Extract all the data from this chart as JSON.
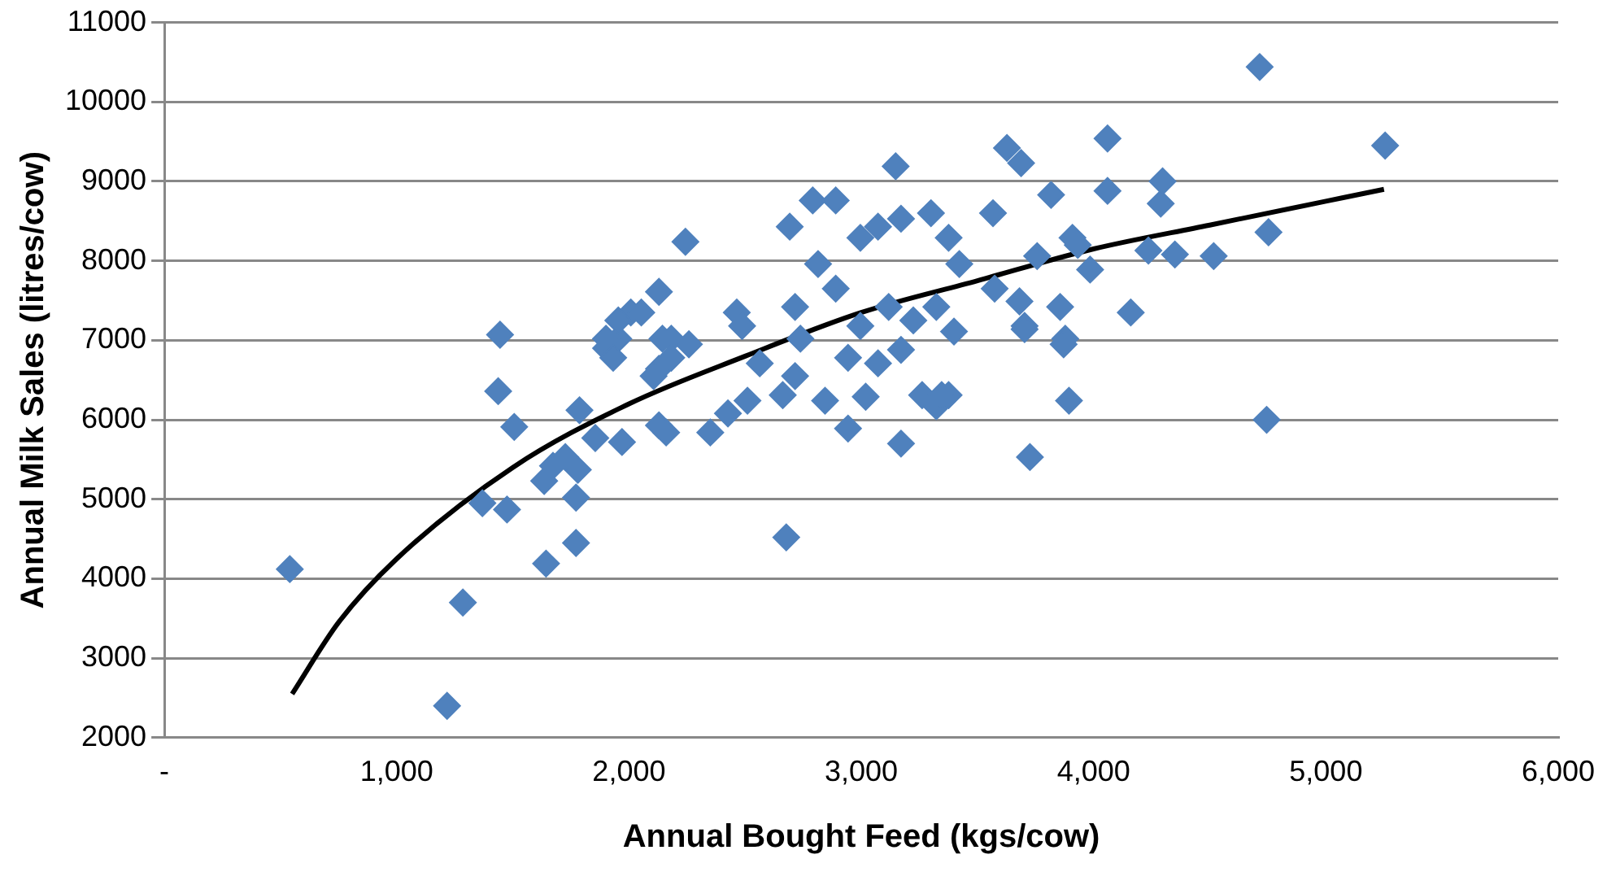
{
  "chart_data": {
    "type": "scatter",
    "xlabel": "Annual Bought Feed (kgs/cow)",
    "ylabel": "Annual Milk Sales (litres/cow)",
    "xlim": [
      0,
      6000
    ],
    "ylim": [
      2000,
      11000
    ],
    "xticks": [
      {
        "value": 0,
        "label": "-"
      },
      {
        "value": 1000,
        "label": "1,000"
      },
      {
        "value": 2000,
        "label": "2,000"
      },
      {
        "value": 3000,
        "label": "3,000"
      },
      {
        "value": 4000,
        "label": "4,000"
      },
      {
        "value": 5000,
        "label": "5,000"
      },
      {
        "value": 6000,
        "label": "6,000"
      }
    ],
    "yticks": [
      2000,
      3000,
      4000,
      5000,
      6000,
      7000,
      8000,
      9000,
      10000,
      11000
    ],
    "grid": "y",
    "legend": false,
    "marker": "diamond",
    "series": [
      {
        "color": "#4f81bd",
        "x": [
          540,
          1217,
          1285,
          1445,
          1437,
          1506,
          1369,
          1475,
          1643,
          1772,
          1772,
          1635,
          1673,
          1780,
          1726,
          1787,
          1855,
          1970,
          1901,
          1954,
          2008,
          1932,
          2129,
          2144,
          2129,
          2129,
          3148,
          3688,
          3627,
          3817,
          3567,
          4060,
          4060,
          2243,
          1954,
          1901,
          2053,
          2182,
          2258,
          2464,
          2487,
          2106,
          2182,
          2160,
          2350,
          2426,
          2510,
          2563,
          2662,
          2715,
          2715,
          2738,
          2677,
          2844,
          2943,
          3019,
          2692,
          2791,
          2890,
          2814,
          2890,
          2996,
          3072,
          3171,
          3300,
          3376,
          3422,
          2996,
          3118,
          3224,
          3323,
          2943,
          3072,
          3171,
          3171,
          3262,
          3323,
          3376,
          3399,
          3574,
          3681,
          3703,
          3757,
          3856,
          3878,
          3909,
          3985,
          3894,
          3726,
          4715,
          5255,
          4297,
          4289,
          4753,
          4517,
          4350,
          4236,
          3932,
          4160,
          4745,
          3703,
          3871,
          3346
        ],
        "values": [
          4120,
          2400,
          3700,
          7070,
          6360,
          5910,
          4950,
          4870,
          4190,
          4450,
          5020,
          5230,
          5420,
          5370,
          5530,
          6120,
          5770,
          5720,
          6900,
          7020,
          7350,
          6780,
          7610,
          7020,
          6640,
          5930,
          9190,
          9230,
          9420,
          8830,
          8600,
          9540,
          8880,
          8240,
          7250,
          7020,
          7350,
          7020,
          6950,
          7350,
          7180,
          6550,
          6780,
          5840,
          5840,
          6080,
          6240,
          6710,
          6310,
          6550,
          7420,
          7020,
          4520,
          6240,
          5890,
          6290,
          8430,
          8760,
          8760,
          7960,
          7650,
          8290,
          8430,
          8530,
          8600,
          8290,
          7960,
          7180,
          7420,
          7250,
          7420,
          6780,
          6710,
          6880,
          5700,
          6310,
          6170,
          6310,
          7110,
          7650,
          7490,
          7180,
          8060,
          7420,
          7020,
          8290,
          7890,
          6240,
          5530,
          10440,
          9450,
          9000,
          8720,
          8360,
          8060,
          8080,
          8130,
          8200,
          7350,
          6000,
          7140,
          6950,
          6310
        ]
      },
      {
        "type": "line",
        "color": "#000000",
        "marker": "none",
        "line_style": "solid",
        "x": [
          550,
          750,
          1000,
          1500,
          2000,
          2500,
          3000,
          3500,
          4000,
          4500,
          5000,
          5250
        ],
        "values": [
          2550,
          3450,
          4250,
          5400,
          6200,
          6800,
          7350,
          7750,
          8150,
          8450,
          8750,
          8900
        ]
      }
    ]
  }
}
